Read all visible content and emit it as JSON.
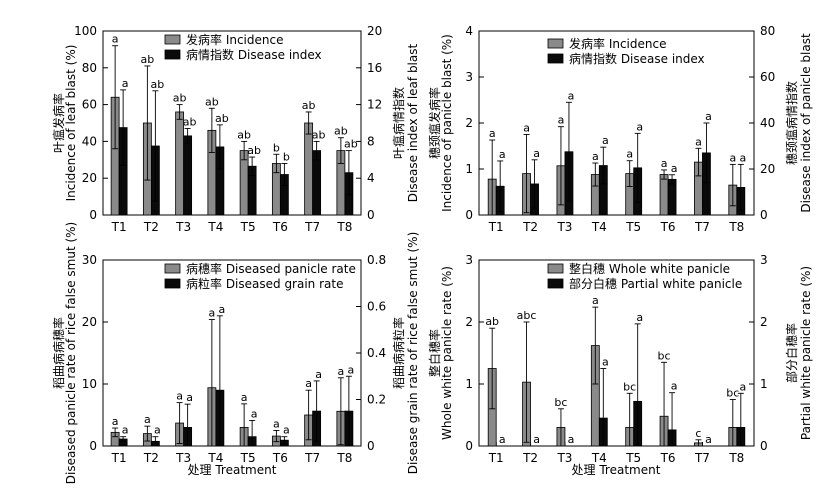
{
  "figure": {
    "x_axis_title": "处理 Treatment"
  },
  "colors": {
    "bar1": "#8a8a8a",
    "bar2": "#0a0a0a",
    "axis": "#000000"
  },
  "chart_data": [
    {
      "type": "bar",
      "categories": [
        "T1",
        "T2",
        "T3",
        "T4",
        "T5",
        "T6",
        "T7",
        "T8"
      ],
      "ylabel_left": "叶瘟发病率 Incidence of leaf blast (%)",
      "ylabel_right": "叶瘟病情指数 Disease index of leaf blast",
      "ylim_left": [
        0,
        100
      ],
      "yticks_left": [
        0,
        20,
        40,
        60,
        80,
        100
      ],
      "ylim_right": [
        0,
        20
      ],
      "yticks_right": [
        0,
        4,
        8,
        12,
        16,
        20
      ],
      "legend_position": "top-center",
      "series": [
        {
          "name": "发病率 Incidence",
          "axis": "left",
          "values": [
            64,
            50,
            56,
            46,
            35,
            28,
            50,
            35
          ],
          "errors": [
            28,
            31,
            4,
            12,
            5,
            5,
            6,
            7
          ],
          "letters": [
            "a",
            "ab",
            "ab",
            "ab",
            "ab",
            "b",
            "ab",
            "ab"
          ]
        },
        {
          "name": "病情指数 Disease index",
          "axis": "right",
          "values": [
            9.5,
            7.5,
            8.6,
            7.4,
            5.3,
            4.4,
            7.0,
            4.6
          ],
          "errors": [
            4.1,
            6.0,
            0.8,
            2.4,
            1.0,
            1.2,
            1.0,
            2.4
          ],
          "letters": [
            "a",
            "ab",
            "ab",
            "ab",
            "ab",
            "b",
            "ab",
            "ab"
          ]
        }
      ]
    },
    {
      "type": "bar",
      "categories": [
        "T1",
        "T2",
        "T3",
        "T4",
        "T5",
        "T6",
        "T7",
        "T8"
      ],
      "ylabel_left": "穗颈瘟发病率 Incidence of panicle blast (%)",
      "ylabel_right": "穗颈瘟病情指数 Disease index of panicle blast",
      "ylim_left": [
        0,
        4
      ],
      "yticks_left": [
        0,
        1,
        2,
        3,
        4
      ],
      "ylim_right": [
        0,
        80
      ],
      "yticks_right": [
        0,
        20,
        40,
        60,
        80
      ],
      "legend_position": "top-center",
      "series": [
        {
          "name": "发病率 Incidence",
          "axis": "left",
          "values": [
            0.78,
            0.9,
            1.07,
            0.88,
            0.9,
            0.88,
            1.15,
            0.65
          ],
          "errors": [
            0.85,
            0.85,
            0.85,
            0.25,
            0.28,
            0.1,
            0.3,
            0.45
          ],
          "letters": [
            "a",
            "a",
            "a",
            "a",
            "a",
            "a",
            "a",
            "a"
          ]
        },
        {
          "name": "病情指数 Disease index",
          "axis": "right",
          "values": [
            12.5,
            13.5,
            27.5,
            21.5,
            20.5,
            15.5,
            27.0,
            12.0
          ],
          "errors": [
            11,
            10.5,
            21.5,
            8,
            15,
            2,
            13,
            10
          ],
          "letters": [
            "a",
            "a",
            "a",
            "a",
            "a",
            "a",
            "a",
            "a"
          ]
        }
      ]
    },
    {
      "type": "bar",
      "categories": [
        "T1",
        "T2",
        "T3",
        "T4",
        "T5",
        "T6",
        "T7",
        "T8"
      ],
      "ylabel_left": "稻曲病病穗率 Diseased panicle rate of rice false smut (%)",
      "ylabel_right": "稻曲病病粒率 Disease grain rate of rice false smut (%)",
      "ylim_left": [
        0,
        30
      ],
      "yticks_left": [
        0,
        10,
        20,
        30
      ],
      "ylim_right": [
        0,
        0.8
      ],
      "yticks_right": [
        0.0,
        0.2,
        0.4,
        0.6,
        0.8
      ],
      "legend_position": "top-center",
      "series": [
        {
          "name": "病穗率 Diseased panicle rate",
          "axis": "left",
          "values": [
            2.2,
            2.0,
            3.7,
            9.4,
            3.0,
            1.6,
            5.0,
            5.6
          ],
          "errors": [
            0.7,
            1.2,
            3.3,
            11.0,
            3.8,
            0.9,
            4.0,
            5.4
          ],
          "letters": [
            "a",
            "a",
            "a",
            "a",
            "a",
            "a",
            "a",
            "a"
          ]
        },
        {
          "name": "病粒率 Diseased grain rate",
          "axis": "right",
          "values": [
            0.03,
            0.02,
            0.08,
            0.24,
            0.04,
            0.025,
            0.15,
            0.15
          ],
          "errors": [
            0.01,
            0.02,
            0.1,
            0.32,
            0.07,
            0.015,
            0.13,
            0.15
          ],
          "letters": [
            "a",
            "a",
            "a",
            "a",
            "a",
            "a",
            "a",
            "a"
          ]
        }
      ]
    },
    {
      "type": "bar",
      "categories": [
        "T1",
        "T2",
        "T3",
        "T4",
        "T5",
        "T6",
        "T7",
        "T8"
      ],
      "ylabel_left": "整白穗率 Whole white panicle rate (%)",
      "ylabel_right": "部分白穗率 Partial white panicle rate (%)",
      "ylim_left": [
        0,
        3
      ],
      "yticks_left": [
        0,
        1,
        2,
        3
      ],
      "ylim_right": [
        0,
        3
      ],
      "yticks_right": [
        0,
        1,
        2,
        3
      ],
      "legend_position": "top-center",
      "series": [
        {
          "name": "整白穗 Whole white panicle",
          "axis": "left",
          "values": [
            1.25,
            1.03,
            0.3,
            1.62,
            0.3,
            0.48,
            0.05,
            0.3
          ],
          "errors": [
            0.65,
            0.97,
            0.3,
            0.62,
            0.55,
            0.87,
            0.05,
            0.45
          ],
          "letters": [
            "ab",
            "abc",
            "bc",
            "a",
            "bc",
            "bc",
            "c",
            "bc"
          ]
        },
        {
          "name": "部分白穗 Partial white panicle",
          "axis": "right",
          "values": [
            0,
            0,
            0,
            0.45,
            0.72,
            0.26,
            0,
            0.3
          ],
          "errors": [
            0,
            0,
            0,
            0.8,
            1.25,
            0.6,
            0,
            0.55
          ],
          "letters": [
            "a",
            "a",
            "a",
            "a",
            "a",
            "a",
            "a",
            "a"
          ]
        }
      ]
    }
  ]
}
